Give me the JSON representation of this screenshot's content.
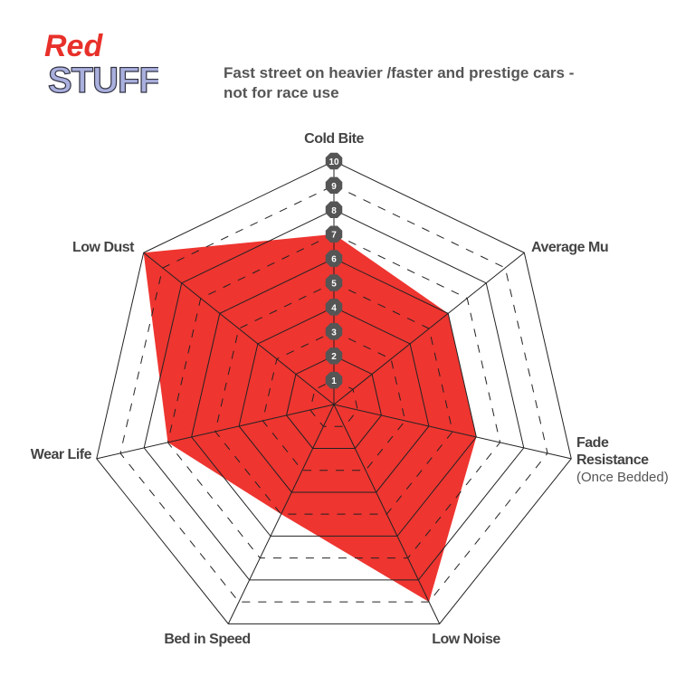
{
  "brand": {
    "logo_line1": "Red",
    "logo_line2": "STUFF",
    "logo_red": "#e8302a",
    "logo_blue": "#aab0dd"
  },
  "title_line1": "Fast street on heavier /faster and prestige cars -",
  "title_line2": "not for race use",
  "chart_data": {
    "type": "radar",
    "axes": [
      "Cold Bite",
      "Average Mu",
      "Fade Resistance",
      "Low Noise",
      "Bed in Speed",
      "Wear Life",
      "Low Dust"
    ],
    "axis_sublabels": {
      "Fade Resistance": "(Once Bedded)"
    },
    "values": [
      7,
      6,
      6,
      9,
      5,
      7,
      10
    ],
    "range": [
      0,
      10
    ],
    "scale_ticks": [
      1,
      2,
      3,
      4,
      5,
      6,
      7,
      8,
      9,
      10
    ],
    "fill_color": "#ee3530",
    "grid_color": "#222222",
    "tick_badge_color": "#555555"
  }
}
